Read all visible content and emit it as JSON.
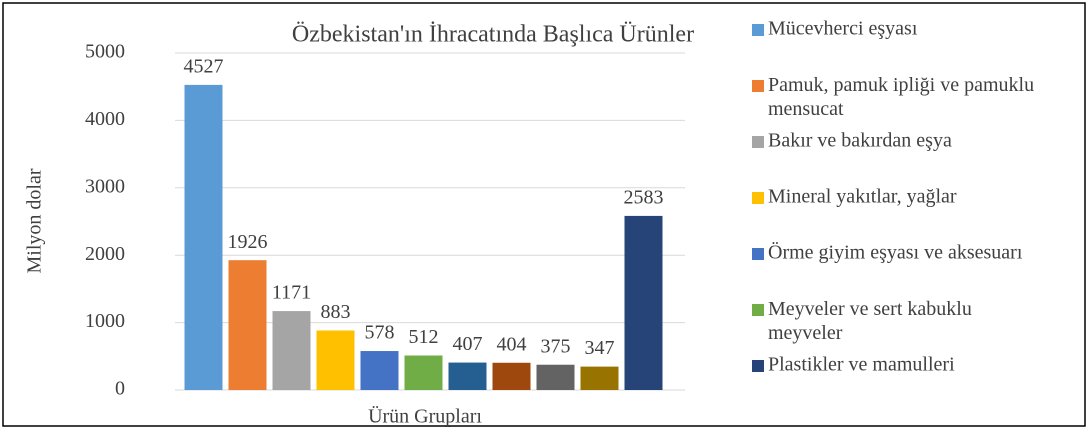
{
  "chart_data": {
    "type": "bar",
    "title": "Özbekistan'ın İhracatında Başlıca Ürünler",
    "x_label": "Ürün Grupları",
    "y_label": "Milyon dolar",
    "ylim": [
      0,
      5000
    ],
    "yticks": [
      0,
      1000,
      2000,
      3000,
      4000,
      5000
    ],
    "grid": true,
    "series": [
      {
        "name": "Mücevherci eşyası",
        "color": "#5b9bd5",
        "values": [
          4527
        ]
      },
      {
        "name": "Pamuk, pamuk ipliği ve pamuklu mensucat",
        "color": "#ed7d31",
        "values": [
          1926
        ]
      },
      {
        "name": "Bakır ve bakırdan eşya",
        "color": "#a5a5a5",
        "values": [
          1171
        ]
      },
      {
        "name": "Mineral yakıtlar, yağlar",
        "color": "#ffc000",
        "values": [
          883
        ]
      },
      {
        "name": "Örme giyim eşyası ve aksesuarı",
        "color": "#4472c4",
        "values": [
          578
        ]
      },
      {
        "name": "Meyveler ve sert kabuklu meyveler",
        "color": "#70ad47",
        "values": [
          512
        ]
      },
      {
        "name": null,
        "color": "#255e91",
        "values": [
          407
        ]
      },
      {
        "name": null,
        "color": "#9e480e",
        "values": [
          404
        ]
      },
      {
        "name": null,
        "color": "#636363",
        "values": [
          375
        ]
      },
      {
        "name": null,
        "color": "#997300",
        "values": [
          347
        ]
      },
      {
        "name": "Plastikler ve mamulleri",
        "color": "#264478",
        "values": [
          2583
        ]
      }
    ]
  }
}
